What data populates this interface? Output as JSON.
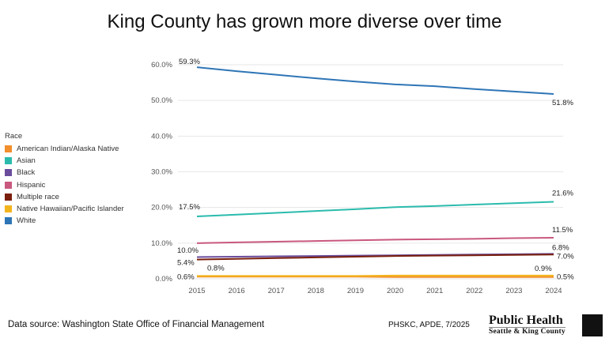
{
  "title": "King County has grown more diverse over time",
  "footer": {
    "source": "Data source: Washington State Office of Financial Management",
    "credit": "PHSKC, APDE, 7/2025",
    "logo_line1": "Public Health",
    "logo_line2": "Seattle & King County"
  },
  "chart_data": {
    "type": "line",
    "title": "King County has grown more diverse over time",
    "legend_title": "Race",
    "legend_position": "left",
    "x": [
      2015,
      2016,
      2017,
      2018,
      2019,
      2020,
      2021,
      2022,
      2023,
      2024
    ],
    "ylim": [
      0,
      60
    ],
    "yticks": [
      "0.0%",
      "10.0%",
      "20.0%",
      "30.0%",
      "40.0%",
      "50.0%",
      "60.0%"
    ],
    "grid": "horizontal",
    "series": [
      {
        "name": "American Indian/Alaska Native",
        "color": "#f28e2b",
        "values": [
          0.6,
          0.6,
          0.6,
          0.6,
          0.6,
          0.5,
          0.5,
          0.5,
          0.5,
          0.5
        ],
        "start_label": "0.6%",
        "end_label": "0.5%"
      },
      {
        "name": "Asian",
        "color": "#2bbbad",
        "values": [
          17.5,
          18.0,
          18.5,
          19.0,
          19.5,
          20.1,
          20.4,
          20.8,
          21.2,
          21.6
        ],
        "start_label": "17.5%",
        "end_label": "21.6%"
      },
      {
        "name": "Black",
        "color": "#6a4c9c",
        "values": [
          6.1,
          6.2,
          6.3,
          6.4,
          6.5,
          6.6,
          6.7,
          6.8,
          6.9,
          7.0
        ],
        "start_label": "",
        "end_label": "7.0%"
      },
      {
        "name": "Hispanic",
        "color": "#c9587f",
        "values": [
          10.0,
          10.2,
          10.4,
          10.6,
          10.8,
          11.0,
          11.1,
          11.2,
          11.4,
          11.5
        ],
        "start_label": "10.0%",
        "end_label": "11.5%"
      },
      {
        "name": "Multiple race",
        "color": "#7a1f0c",
        "values": [
          5.4,
          5.6,
          5.8,
          6.0,
          6.2,
          6.4,
          6.5,
          6.6,
          6.7,
          6.8
        ],
        "start_label": "5.4%",
        "end_label": "6.8%"
      },
      {
        "name": "Native Hawaiian/Pacific Islander",
        "color": "#f2b41c",
        "values": [
          0.8,
          0.8,
          0.8,
          0.8,
          0.8,
          0.9,
          0.9,
          0.9,
          0.9,
          0.9
        ],
        "start_label": "0.8%",
        "end_label": "0.9%"
      },
      {
        "name": "White",
        "color": "#2e75b6",
        "values": [
          59.3,
          58.2,
          57.2,
          56.2,
          55.3,
          54.5,
          54.0,
          53.2,
          52.5,
          51.8
        ],
        "start_label": "59.3%",
        "end_label": "51.8%"
      }
    ]
  }
}
